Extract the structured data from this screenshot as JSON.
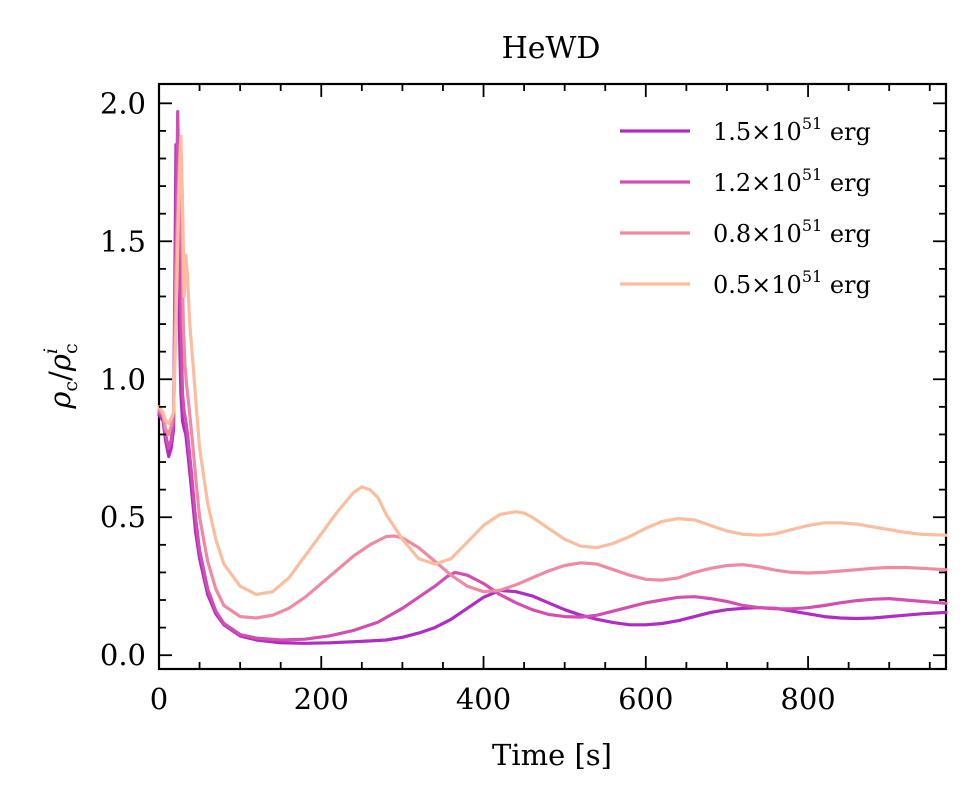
{
  "chart_data": {
    "type": "line",
    "title": "HeWD",
    "xlabel": "Time [s]",
    "ylabel_parts": {
      "rho": "ρ",
      "sub_c": "c",
      "slash": "/",
      "sup_i": "i"
    },
    "xlim": [
      0,
      970
    ],
    "ylim": [
      -0.05,
      2.07
    ],
    "xticks": [
      0,
      200,
      400,
      600,
      800
    ],
    "xtick_labels": [
      "0",
      "200",
      "400",
      "600",
      "800"
    ],
    "yticks": [
      0.0,
      0.5,
      1.0,
      1.5,
      2.0
    ],
    "ytick_labels": [
      "0.0",
      "0.5",
      "1.0",
      "1.5",
      "2.0"
    ],
    "grid": false,
    "legend_position": "top-right",
    "series": [
      {
        "name": "1.5×10⁵¹ erg",
        "legend": {
          "mantissa": "1.5×10",
          "exponent": "51",
          "unit": " erg"
        },
        "color": "#b02dc4",
        "x": [
          0,
          5,
          8,
          12,
          15,
          18,
          21,
          23,
          25,
          27,
          29,
          31,
          33,
          36,
          40,
          45,
          50,
          60,
          70,
          80,
          100,
          120,
          150,
          180,
          210,
          250,
          280,
          300,
          320,
          340,
          360,
          380,
          400,
          420,
          440,
          460,
          480,
          500,
          520,
          540,
          560,
          580,
          600,
          620,
          640,
          660,
          680,
          700,
          720,
          740,
          760,
          780,
          800,
          820,
          840,
          860,
          880,
          900,
          920,
          940,
          970
        ],
        "y": [
          0.87,
          0.85,
          0.78,
          0.72,
          0.75,
          0.82,
          1.85,
          1.6,
          1.2,
          0.95,
          0.85,
          0.82,
          0.8,
          0.72,
          0.6,
          0.45,
          0.35,
          0.22,
          0.15,
          0.11,
          0.07,
          0.055,
          0.045,
          0.043,
          0.045,
          0.05,
          0.055,
          0.065,
          0.08,
          0.1,
          0.13,
          0.17,
          0.21,
          0.235,
          0.23,
          0.215,
          0.19,
          0.165,
          0.145,
          0.13,
          0.118,
          0.11,
          0.11,
          0.115,
          0.125,
          0.14,
          0.155,
          0.165,
          0.17,
          0.172,
          0.17,
          0.16,
          0.15,
          0.14,
          0.135,
          0.133,
          0.135,
          0.14,
          0.145,
          0.15,
          0.155
        ]
      },
      {
        "name": "1.2×10⁵¹ erg",
        "legend": {
          "mantissa": "1.2×10",
          "exponent": "51",
          "unit": " erg"
        },
        "color": "#d24fb2",
        "x": [
          0,
          5,
          8,
          12,
          15,
          18,
          21,
          23,
          25,
          27,
          29,
          31,
          33,
          36,
          40,
          45,
          50,
          60,
          70,
          80,
          100,
          120,
          150,
          180,
          210,
          240,
          270,
          300,
          320,
          340,
          355,
          365,
          380,
          400,
          420,
          440,
          460,
          480,
          500,
          520,
          540,
          560,
          580,
          600,
          620,
          640,
          660,
          680,
          700,
          720,
          740,
          760,
          780,
          800,
          820,
          840,
          860,
          880,
          900,
          920,
          940,
          970
        ],
        "y": [
          0.88,
          0.86,
          0.8,
          0.75,
          0.78,
          0.85,
          1.5,
          1.97,
          1.6,
          1.2,
          0.95,
          0.88,
          0.85,
          0.78,
          0.66,
          0.5,
          0.38,
          0.24,
          0.16,
          0.115,
          0.075,
          0.062,
          0.055,
          0.058,
          0.07,
          0.09,
          0.12,
          0.17,
          0.21,
          0.25,
          0.285,
          0.3,
          0.29,
          0.26,
          0.22,
          0.19,
          0.165,
          0.148,
          0.14,
          0.138,
          0.145,
          0.16,
          0.175,
          0.19,
          0.2,
          0.21,
          0.212,
          0.205,
          0.195,
          0.18,
          0.172,
          0.168,
          0.168,
          0.172,
          0.18,
          0.19,
          0.198,
          0.203,
          0.205,
          0.2,
          0.195,
          0.188
        ]
      },
      {
        "name": "0.8×10⁵¹ erg",
        "legend": {
          "mantissa": "0.8×10",
          "exponent": "51",
          "unit": " erg"
        },
        "color": "#ee8aa2",
        "x": [
          0,
          5,
          8,
          12,
          15,
          18,
          21,
          24,
          26,
          28,
          30,
          32,
          34,
          37,
          41,
          46,
          50,
          60,
          70,
          80,
          100,
          120,
          140,
          160,
          180,
          200,
          220,
          240,
          260,
          280,
          290,
          300,
          320,
          340,
          360,
          380,
          400,
          420,
          440,
          460,
          480,
          500,
          520,
          540,
          560,
          580,
          600,
          620,
          640,
          660,
          680,
          700,
          720,
          740,
          760,
          780,
          800,
          820,
          840,
          860,
          880,
          900,
          920,
          940,
          970
        ],
        "y": [
          0.89,
          0.87,
          0.82,
          0.8,
          0.83,
          0.88,
          1.4,
          1.7,
          1.85,
          1.6,
          1.2,
          1.05,
          0.98,
          0.9,
          0.78,
          0.62,
          0.5,
          0.34,
          0.24,
          0.18,
          0.14,
          0.135,
          0.145,
          0.17,
          0.21,
          0.26,
          0.31,
          0.36,
          0.4,
          0.43,
          0.432,
          0.425,
          0.39,
          0.34,
          0.29,
          0.25,
          0.23,
          0.235,
          0.255,
          0.28,
          0.305,
          0.325,
          0.335,
          0.33,
          0.31,
          0.29,
          0.275,
          0.272,
          0.28,
          0.3,
          0.315,
          0.325,
          0.328,
          0.32,
          0.308,
          0.3,
          0.298,
          0.3,
          0.305,
          0.31,
          0.315,
          0.318,
          0.318,
          0.315,
          0.31
        ]
      },
      {
        "name": "0.5×10⁵¹ erg",
        "legend": {
          "mantissa": "0.5×10",
          "exponent": "51",
          "unit": " erg"
        },
        "color": "#fbbd9f",
        "x": [
          0,
          5,
          8,
          12,
          15,
          18,
          21,
          24,
          27,
          29,
          31,
          33,
          35,
          38,
          42,
          46,
          50,
          60,
          70,
          80,
          100,
          120,
          140,
          160,
          180,
          200,
          220,
          240,
          250,
          260,
          270,
          280,
          300,
          320,
          340,
          360,
          380,
          400,
          420,
          440,
          450,
          460,
          480,
          500,
          520,
          540,
          560,
          580,
          600,
          620,
          640,
          660,
          680,
          700,
          720,
          740,
          760,
          780,
          800,
          820,
          840,
          860,
          880,
          900,
          920,
          940,
          970
        ],
        "y": [
          0.9,
          0.88,
          0.85,
          0.84,
          0.86,
          0.88,
          1.2,
          1.6,
          1.88,
          1.65,
          1.3,
          1.45,
          1.38,
          1.2,
          1.05,
          0.9,
          0.75,
          0.55,
          0.42,
          0.33,
          0.25,
          0.22,
          0.23,
          0.28,
          0.36,
          0.44,
          0.52,
          0.59,
          0.61,
          0.6,
          0.57,
          0.51,
          0.42,
          0.35,
          0.33,
          0.35,
          0.41,
          0.47,
          0.51,
          0.52,
          0.515,
          0.5,
          0.46,
          0.42,
          0.395,
          0.39,
          0.405,
          0.43,
          0.46,
          0.485,
          0.495,
          0.49,
          0.47,
          0.45,
          0.438,
          0.435,
          0.44,
          0.455,
          0.47,
          0.48,
          0.48,
          0.475,
          0.465,
          0.455,
          0.445,
          0.438,
          0.435
        ]
      }
    ]
  }
}
